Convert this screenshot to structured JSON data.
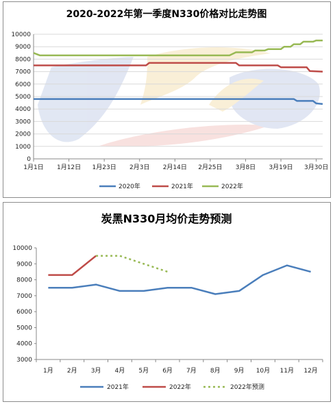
{
  "charts": [
    {
      "type": "line",
      "title": "2020-2022年第一季度N330价格对比走势图",
      "ylim": [
        0,
        10000
      ],
      "yticks": [
        0,
        1000,
        2000,
        3000,
        4000,
        5000,
        6000,
        7000,
        8000,
        9000,
        10000
      ],
      "xlim": [
        1,
        91
      ],
      "xticks": [
        {
          "label": "1月1日",
          "day": 1
        },
        {
          "label": "1月12日",
          "day": 12
        },
        {
          "label": "1月23日",
          "day": 23
        },
        {
          "label": "2月3日",
          "day": 34
        },
        {
          "label": "2月14日",
          "day": 45
        },
        {
          "label": "2月25日",
          "day": 56
        },
        {
          "label": "3月8日",
          "day": 67
        },
        {
          "label": "3月19日",
          "day": 78
        },
        {
          "label": "3月30日",
          "day": 89
        }
      ],
      "grid": true,
      "legend_position": "bottom",
      "series": [
        {
          "name": "2020年",
          "color": "#4a7ebb",
          "dash": false,
          "points": [
            [
              1,
              4800
            ],
            [
              82,
              4800
            ],
            [
              83,
              4650
            ],
            [
              88,
              4650
            ],
            [
              89,
              4450
            ],
            [
              91,
              4400
            ]
          ]
        },
        {
          "name": "2021年",
          "color": "#be4b48",
          "dash": false,
          "points": [
            [
              1,
              7500
            ],
            [
              36,
              7500
            ],
            [
              37,
              7700
            ],
            [
              64,
              7700
            ],
            [
              65,
              7500
            ],
            [
              77,
              7500
            ],
            [
              78,
              7350
            ],
            [
              86,
              7350
            ],
            [
              87,
              7050
            ],
            [
              91,
              7000
            ]
          ]
        },
        {
          "name": "2022年",
          "color": "#98b954",
          "dash": false,
          "points": [
            [
              1,
              8500
            ],
            [
              3,
              8300
            ],
            [
              62,
              8300
            ],
            [
              64,
              8550
            ],
            [
              69,
              8550
            ],
            [
              70,
              8700
            ],
            [
              73,
              8700
            ],
            [
              74,
              8800
            ],
            [
              78,
              8800
            ],
            [
              79,
              9000
            ],
            [
              81,
              9000
            ],
            [
              82,
              9200
            ],
            [
              84,
              9200
            ],
            [
              85,
              9400
            ],
            [
              88,
              9400
            ],
            [
              89,
              9500
            ],
            [
              91,
              9500
            ]
          ]
        }
      ]
    },
    {
      "type": "line",
      "title": "炭黑N330月均价走势预测",
      "ylim": [
        3000,
        10000
      ],
      "yticks": [
        3000,
        4000,
        5000,
        6000,
        7000,
        8000,
        9000,
        10000
      ],
      "categories": [
        "1月",
        "2月",
        "3月",
        "4月",
        "5月",
        "6月",
        "7月",
        "8月",
        "9月",
        "10月",
        "11月",
        "12月"
      ],
      "grid": false,
      "legend_position": "bottom",
      "series": [
        {
          "name": "2021年",
          "color": "#4a7ebb",
          "dash": false,
          "points": [
            [
              1,
              7500
            ],
            [
              2,
              7500
            ],
            [
              3,
              7700
            ],
            [
              4,
              7300
            ],
            [
              5,
              7300
            ],
            [
              6,
              7500
            ],
            [
              7,
              7500
            ],
            [
              8,
              7100
            ],
            [
              9,
              7300
            ],
            [
              10,
              8300
            ],
            [
              11,
              8900
            ],
            [
              12,
              8500
            ]
          ]
        },
        {
          "name": "2022年",
          "color": "#be4b48",
          "dash": false,
          "points": [
            [
              1,
              8300
            ],
            [
              2,
              8300
            ],
            [
              3,
              9500
            ]
          ]
        },
        {
          "name": "2022年预测",
          "color": "#98b954",
          "dash": true,
          "points": [
            [
              3,
              9500
            ],
            [
              4,
              9500
            ],
            [
              5,
              9000
            ],
            [
              6,
              8500
            ]
          ]
        }
      ]
    }
  ]
}
